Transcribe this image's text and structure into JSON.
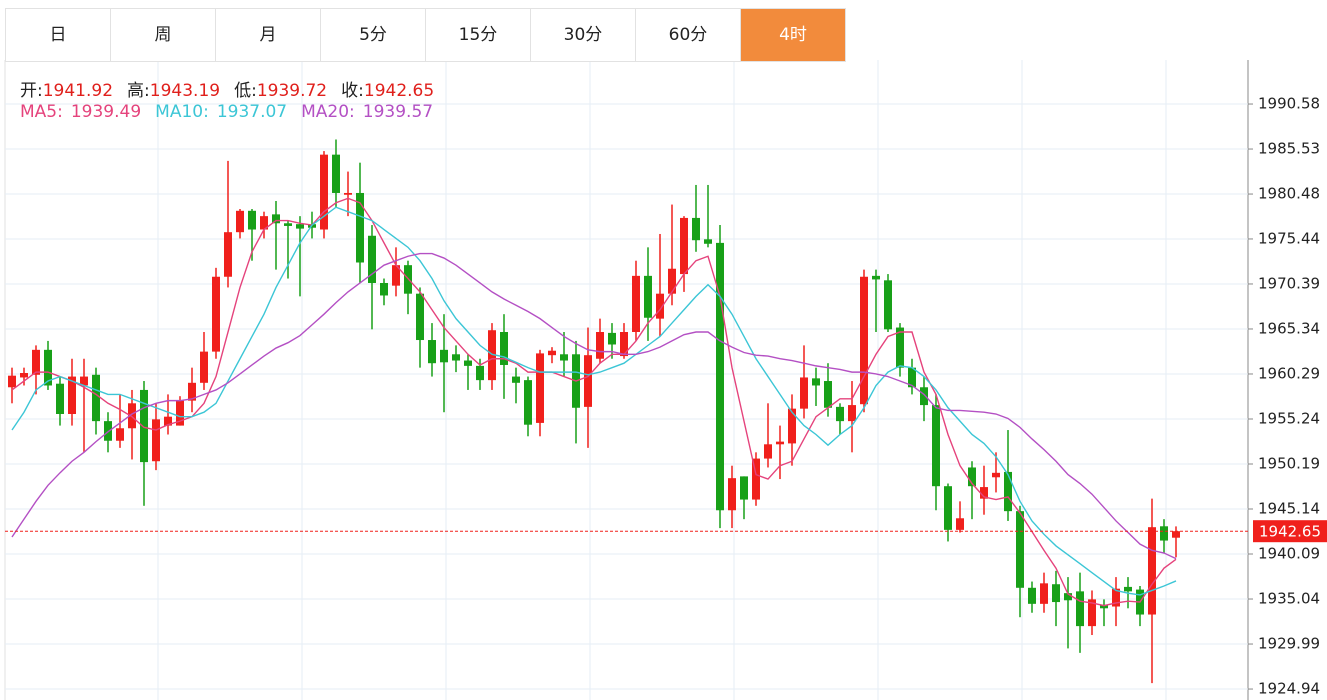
{
  "tabs": [
    "日",
    "周",
    "月",
    "5分",
    "15分",
    "30分",
    "60分",
    "4时"
  ],
  "active_tab": 7,
  "chart_data": {
    "type": "candlestick",
    "info_labels": [
      "开:",
      "高:",
      "低:",
      "收:"
    ],
    "up_color": "#f0201c",
    "down_color": "#18a018",
    "ylim": [
      1923.71,
      1995.52
    ],
    "yticks": [
      1990.58,
      1985.53,
      1980.48,
      1975.44,
      1970.39,
      1965.34,
      1960.29,
      1955.24,
      1950.19,
      1945.14,
      1940.09,
      1935.04,
      1929.99,
      1924.94
    ],
    "grid": true,
    "candles": [
      {
        "o": 1958.8,
        "h": 1961,
        "l": 1957,
        "c": 1960.1
      },
      {
        "o": 1959.9,
        "h": 1961,
        "l": 1959,
        "c": 1960.4
      },
      {
        "o": 1960.2,
        "h": 1963.5,
        "l": 1958,
        "c": 1963
      },
      {
        "o": 1963,
        "h": 1964,
        "l": 1958.5,
        "c": 1959
      },
      {
        "o": 1959.2,
        "h": 1960,
        "l": 1954.5,
        "c": 1955.8
      },
      {
        "o": 1955.8,
        "h": 1962,
        "l": 1954.5,
        "c": 1960
      },
      {
        "o": 1959,
        "h": 1962,
        "l": 1951.5,
        "c": 1960
      },
      {
        "o": 1960.2,
        "h": 1961,
        "l": 1953.5,
        "c": 1955
      },
      {
        "o": 1955,
        "h": 1956,
        "l": 1951.5,
        "c": 1952.8
      },
      {
        "o": 1952.8,
        "h": 1958,
        "l": 1952,
        "c": 1954.2
      },
      {
        "o": 1954.2,
        "h": 1958.5,
        "l": 1950.7,
        "c": 1957
      },
      {
        "o": 1958.5,
        "h": 1959.5,
        "l": 1945.5,
        "c": 1950.4
      },
      {
        "o": 1950.5,
        "h": 1957,
        "l": 1949.5,
        "c": 1955.2
      },
      {
        "o": 1954.5,
        "h": 1958,
        "l": 1953.5,
        "c": 1955.5
      },
      {
        "o": 1954.5,
        "h": 1957.8,
        "l": 1954.5,
        "c": 1957.3
      },
      {
        "o": 1957.3,
        "h": 1961,
        "l": 1956,
        "c": 1959.3
      },
      {
        "o": 1959.3,
        "h": 1965,
        "l": 1958.5,
        "c": 1962.8
      },
      {
        "o": 1962.8,
        "h": 1972.2,
        "l": 1962,
        "c": 1971.2
      },
      {
        "o": 1971.2,
        "h": 1984.2,
        "l": 1970,
        "c": 1976.2
      },
      {
        "o": 1976.2,
        "h": 1978.8,
        "l": 1975.5,
        "c": 1978.6
      },
      {
        "o": 1978.6,
        "h": 1978.8,
        "l": 1973,
        "c": 1976.5
      },
      {
        "o": 1976.5,
        "h": 1978.5,
        "l": 1975.5,
        "c": 1978
      },
      {
        "o": 1978.2,
        "h": 1979.7,
        "l": 1972,
        "c": 1977.2
      },
      {
        "o": 1977.2,
        "h": 1977.5,
        "l": 1971,
        "c": 1976.9
      },
      {
        "o": 1977.1,
        "h": 1978,
        "l": 1969,
        "c": 1976.6
      },
      {
        "o": 1977.1,
        "h": 1978.5,
        "l": 1975.5,
        "c": 1976.7
      },
      {
        "o": 1976.5,
        "h": 1985.3,
        "l": 1975.5,
        "c": 1984.9
      },
      {
        "o": 1984.9,
        "h": 1986.6,
        "l": 1979,
        "c": 1980.6
      },
      {
        "o": 1980.4,
        "h": 1983,
        "l": 1978,
        "c": 1980.6
      },
      {
        "o": 1980.6,
        "h": 1984,
        "l": 1970.5,
        "c": 1972.8
      },
      {
        "o": 1975.8,
        "h": 1977,
        "l": 1965.3,
        "c": 1970.5
      },
      {
        "o": 1970.5,
        "h": 1971,
        "l": 1968,
        "c": 1969.1
      },
      {
        "o": 1970.2,
        "h": 1974.5,
        "l": 1969,
        "c": 1972.5
      },
      {
        "o": 1972.5,
        "h": 1973,
        "l": 1967,
        "c": 1969.3
      },
      {
        "o": 1969.3,
        "h": 1970,
        "l": 1961,
        "c": 1964.1
      },
      {
        "o": 1964.1,
        "h": 1966,
        "l": 1960,
        "c": 1961.5
      },
      {
        "o": 1963,
        "h": 1967,
        "l": 1956,
        "c": 1961.6
      },
      {
        "o": 1962.5,
        "h": 1963.5,
        "l": 1960.5,
        "c": 1961.8
      },
      {
        "o": 1961.8,
        "h": 1962.5,
        "l": 1958.5,
        "c": 1961.2
      },
      {
        "o": 1961.2,
        "h": 1962,
        "l": 1958.5,
        "c": 1959.6
      },
      {
        "o": 1959.6,
        "h": 1966,
        "l": 1958.5,
        "c": 1965.2
      },
      {
        "o": 1965,
        "h": 1967,
        "l": 1957.5,
        "c": 1961.3
      },
      {
        "o": 1960,
        "h": 1961,
        "l": 1957,
        "c": 1959.3
      },
      {
        "o": 1959.6,
        "h": 1960,
        "l": 1953.3,
        "c": 1954.6
      },
      {
        "o": 1954.8,
        "h": 1963,
        "l": 1953.3,
        "c": 1962.6
      },
      {
        "o": 1962.4,
        "h": 1963.3,
        "l": 1961.5,
        "c": 1962.9
      },
      {
        "o": 1962.5,
        "h": 1965,
        "l": 1960,
        "c": 1961.8
      },
      {
        "o": 1962.5,
        "h": 1964,
        "l": 1952.5,
        "c": 1956.5
      },
      {
        "o": 1956.6,
        "h": 1965.5,
        "l": 1952,
        "c": 1962.4
      },
      {
        "o": 1962,
        "h": 1966.5,
        "l": 1961.5,
        "c": 1965
      },
      {
        "o": 1964.9,
        "h": 1966,
        "l": 1962,
        "c": 1963.6
      },
      {
        "o": 1962.3,
        "h": 1966,
        "l": 1962,
        "c": 1965
      },
      {
        "o": 1965,
        "h": 1973,
        "l": 1964,
        "c": 1971.3
      },
      {
        "o": 1971.3,
        "h": 1974.5,
        "l": 1964,
        "c": 1966.6
      },
      {
        "o": 1966.5,
        "h": 1976,
        "l": 1964.5,
        "c": 1969.3
      },
      {
        "o": 1969.3,
        "h": 1979.3,
        "l": 1968,
        "c": 1972.1
      },
      {
        "o": 1971.5,
        "h": 1978,
        "l": 1969.5,
        "c": 1977.8
      },
      {
        "o": 1977.8,
        "h": 1981.5,
        "l": 1974,
        "c": 1975.3
      },
      {
        "o": 1975.4,
        "h": 1981.5,
        "l": 1974.5,
        "c": 1974.9
      },
      {
        "o": 1975,
        "h": 1977,
        "l": 1943,
        "c": 1945
      },
      {
        "o": 1945,
        "h": 1950,
        "l": 1943,
        "c": 1948.6
      },
      {
        "o": 1948.8,
        "h": 1948.8,
        "l": 1944,
        "c": 1946.2
      },
      {
        "o": 1946.2,
        "h": 1951.5,
        "l": 1945.5,
        "c": 1950.8
      },
      {
        "o": 1950.8,
        "h": 1957,
        "l": 1949.8,
        "c": 1952.4
      },
      {
        "o": 1952.4,
        "h": 1954.5,
        "l": 1948.5,
        "c": 1952.7
      },
      {
        "o": 1952.5,
        "h": 1958,
        "l": 1950,
        "c": 1956.4
      },
      {
        "o": 1956.4,
        "h": 1963.5,
        "l": 1955.3,
        "c": 1959.9
      },
      {
        "o": 1959.8,
        "h": 1961,
        "l": 1956.7,
        "c": 1959
      },
      {
        "o": 1959.5,
        "h": 1961.5,
        "l": 1955.5,
        "c": 1956.5
      },
      {
        "o": 1956.6,
        "h": 1957,
        "l": 1953.5,
        "c": 1955
      },
      {
        "o": 1955,
        "h": 1959.5,
        "l": 1951.5,
        "c": 1956.8
      },
      {
        "o": 1956.9,
        "h": 1972,
        "l": 1956,
        "c": 1971.2
      },
      {
        "o": 1971.3,
        "h": 1972,
        "l": 1965,
        "c": 1970.9
      },
      {
        "o": 1970.8,
        "h": 1971.5,
        "l": 1965,
        "c": 1965.3
      },
      {
        "o": 1965.5,
        "h": 1966,
        "l": 1960,
        "c": 1961
      },
      {
        "o": 1961,
        "h": 1962,
        "l": 1958,
        "c": 1958.8
      },
      {
        "o": 1958.8,
        "h": 1960,
        "l": 1955,
        "c": 1956.8
      },
      {
        "o": 1956.8,
        "h": 1958,
        "l": 1945,
        "c": 1947.7
      },
      {
        "o": 1947.7,
        "h": 1948,
        "l": 1941.5,
        "c": 1942.8
      },
      {
        "o": 1942.8,
        "h": 1946,
        "l": 1942.5,
        "c": 1944.1
      },
      {
        "o": 1949.8,
        "h": 1950.5,
        "l": 1944,
        "c": 1947.7
      },
      {
        "o": 1946.3,
        "h": 1950,
        "l": 1944.5,
        "c": 1947.6
      },
      {
        "o": 1948.7,
        "h": 1951.5,
        "l": 1947,
        "c": 1949.2
      },
      {
        "o": 1949.3,
        "h": 1954,
        "l": 1943.8,
        "c": 1944.9
      },
      {
        "o": 1944.9,
        "h": 1945.5,
        "l": 1933,
        "c": 1936.3
      },
      {
        "o": 1936.3,
        "h": 1937,
        "l": 1933.5,
        "c": 1934.5
      },
      {
        "o": 1934.5,
        "h": 1938,
        "l": 1933.5,
        "c": 1936.8
      },
      {
        "o": 1936.7,
        "h": 1938.2,
        "l": 1932,
        "c": 1934.7
      },
      {
        "o": 1935.7,
        "h": 1937.5,
        "l": 1929.5,
        "c": 1934.9
      },
      {
        "o": 1935.9,
        "h": 1938,
        "l": 1929,
        "c": 1932
      },
      {
        "o": 1932,
        "h": 1936,
        "l": 1931,
        "c": 1935
      },
      {
        "o": 1934.4,
        "h": 1935,
        "l": 1932,
        "c": 1934
      },
      {
        "o": 1934.2,
        "h": 1937.5,
        "l": 1932,
        "c": 1936.2
      },
      {
        "o": 1936.4,
        "h": 1937.5,
        "l": 1934,
        "c": 1935.9
      },
      {
        "o": 1936.1,
        "h": 1936.5,
        "l": 1932,
        "c": 1933.3
      },
      {
        "o": 1933.3,
        "h": 1946.3,
        "l": 1925.6,
        "c": 1943.1
      },
      {
        "o": 1943.2,
        "h": 1944,
        "l": 1940.2,
        "c": 1941.6
      },
      {
        "o": 1941.92,
        "h": 1943.19,
        "l": 1939.72,
        "c": 1942.65
      }
    ],
    "series": [
      {
        "name": "MA5:",
        "color": "#e5437c",
        "values": [
          1958.5,
          1959.5,
          1960.5,
          1960.5,
          1960,
          1959.5,
          1958.8,
          1958,
          1957,
          1956.3,
          1955.5,
          1954.3,
          1954,
          1954.6,
          1955,
          1955.5,
          1957,
          1960,
          1965,
          1970,
          1974,
          1976.5,
          1977.5,
          1977.5,
          1977.2,
          1977,
          1978.5,
          1979.5,
          1980,
          1979.5,
          1977.5,
          1975,
          1972.5,
          1971,
          1969.5,
          1967.5,
          1965.5,
          1964,
          1962.5,
          1961.3,
          1962,
          1962,
          1961.5,
          1960.5,
          1960.5,
          1960.5,
          1960,
          1959.5,
          1960,
          1961.5,
          1962.5,
          1962.5,
          1964,
          1966,
          1967.5,
          1969.5,
          1971.5,
          1973,
          1973.5,
          1969,
          1961,
          1955,
          1949,
          1948.5,
          1950,
          1950.5,
          1953,
          1955.5,
          1956.5,
          1957.5,
          1957.5,
          1960,
          1962.5,
          1964.5,
          1965,
          1965,
          1960.5,
          1958,
          1953.5,
          1950,
          1948,
          1946.5,
          1946.2,
          1946.5,
          1944.7,
          1942.6,
          1940.5,
          1938.5,
          1935.6,
          1934.8,
          1934.6,
          1934.3,
          1934.6,
          1934.8,
          1934.7,
          1936.7,
          1938.5,
          1939.49
        ]
      },
      {
        "name": "MA10:",
        "color": "#3cc6d6",
        "values": [
          1954,
          1956,
          1958.5,
          1959.5,
          1960,
          1959.5,
          1959,
          1958.5,
          1958,
          1958,
          1957.5,
          1957,
          1956.5,
          1956,
          1955.5,
          1955.5,
          1956,
          1957,
          1959.5,
          1962,
          1964.5,
          1967,
          1970,
          1972.5,
          1975,
          1977,
          1978,
          1979,
          1978.5,
          1978,
          1977.5,
          1976.5,
          1975.5,
          1974.5,
          1973,
          1971,
          1968.5,
          1966.5,
          1965,
          1963.5,
          1962.5,
          1962.2,
          1961.6,
          1961,
          1960.5,
          1960.5,
          1960.5,
          1960.5,
          1960.2,
          1960.5,
          1961,
          1961.5,
          1962.5,
          1963.5,
          1964.5,
          1966,
          1967.5,
          1969,
          1970.3,
          1969,
          1967,
          1964.5,
          1962,
          1960,
          1958,
          1956,
          1954.5,
          1953.5,
          1952.3,
          1953.5,
          1954.5,
          1956.5,
          1959,
          1960.5,
          1961.2,
          1961,
          1960,
          1958.5,
          1956.5,
          1955,
          1953.5,
          1952.5,
          1951,
          1949,
          1946,
          1943.8,
          1942.3,
          1941,
          1940,
          1939,
          1938,
          1937,
          1936,
          1935.7,
          1935.5,
          1936,
          1936.5,
          1937.07
        ]
      },
      {
        "name": "MA20:",
        "color": "#b450c4",
        "values": [
          1942,
          1944,
          1946,
          1947.8,
          1949.2,
          1950.5,
          1951.5,
          1952.7,
          1953.8,
          1954.8,
          1955.8,
          1956.5,
          1957,
          1957.3,
          1957.3,
          1957.5,
          1958,
          1958.5,
          1959.3,
          1960.3,
          1961.3,
          1962.3,
          1963.2,
          1963.8,
          1964.6,
          1965.8,
          1967,
          1968.3,
          1969.5,
          1970.5,
          1971.5,
          1972.5,
          1973,
          1973.5,
          1973.8,
          1973.8,
          1973.3,
          1972.5,
          1971.5,
          1970.5,
          1969.5,
          1968.7,
          1968,
          1967.3,
          1966.5,
          1965.5,
          1964.5,
          1963.7,
          1963,
          1962.8,
          1962.8,
          1962.5,
          1962.5,
          1962.8,
          1963.3,
          1964,
          1964.7,
          1965,
          1965,
          1964,
          1963.3,
          1962.7,
          1962.4,
          1962.3,
          1962,
          1961.8,
          1961.5,
          1961.2,
          1961,
          1960.8,
          1960.5,
          1960.5,
          1960.3,
          1960,
          1959.5,
          1959,
          1958,
          1956.5,
          1956.2,
          1956.2,
          1956.1,
          1956,
          1955.8,
          1955.3,
          1954.3,
          1953,
          1951.8,
          1950.5,
          1949,
          1948,
          1946.8,
          1945.3,
          1943.8,
          1942.5,
          1941.2,
          1940.5,
          1940.2,
          1939.57
        ]
      }
    ]
  }
}
